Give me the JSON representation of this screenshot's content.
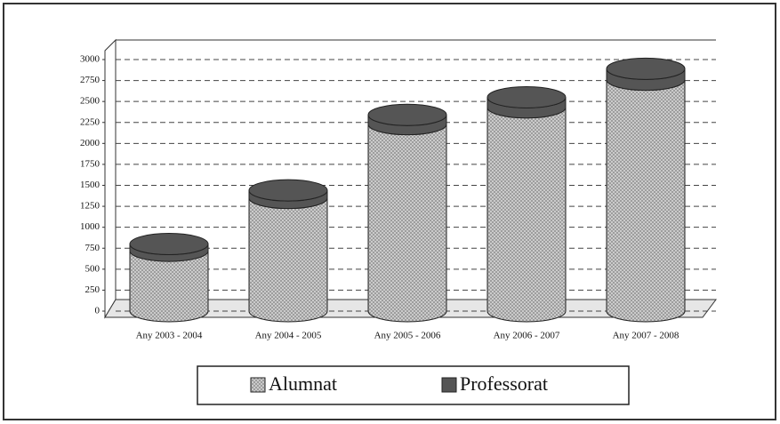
{
  "chart_data": {
    "type": "bar",
    "stacked": true,
    "categories": [
      "Any 2003 - 2004",
      "Any 2004 - 2005",
      "Any 2005 - 2006",
      "Any 2006 - 2007",
      "Any 2007 - 2008"
    ],
    "series": [
      {
        "name": "Alumnat",
        "color": "#c4c4c4",
        "values": [
          720,
          1350,
          2230,
          2430,
          2760
        ]
      },
      {
        "name": "Professorat",
        "color": "#555555",
        "values": [
          80,
          90,
          110,
          120,
          130
        ]
      }
    ],
    "ylim": [
      0,
      3000
    ],
    "yticks": [
      0,
      250,
      500,
      750,
      1000,
      1250,
      1500,
      1750,
      2000,
      2250,
      2500,
      2750,
      3000
    ],
    "grid": true
  }
}
